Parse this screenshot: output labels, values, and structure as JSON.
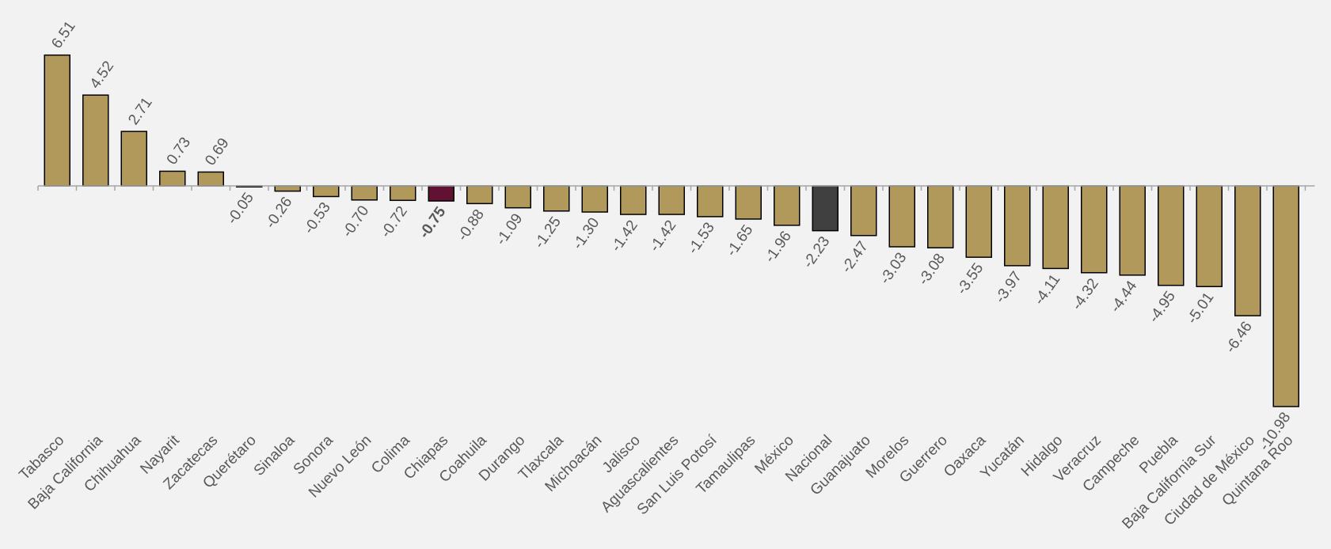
{
  "chart_data": {
    "type": "bar",
    "title": "",
    "xlabel": "",
    "ylabel": "",
    "ylim": [
      -11.5,
      7
    ],
    "grid": false,
    "legend": "none",
    "categories": [
      "Tabasco",
      "Baja California",
      "Chihuahua",
      "Nayarit",
      "Zacatecas",
      "Querétaro",
      "Sinaloa",
      "Sonora",
      "Nuevo León",
      "Colima",
      "Chiapas",
      "Coahuila",
      "Durango",
      "Tlaxcala",
      "Michoacán",
      "Jalisco",
      "Aguascalientes",
      "San Luis Potosí",
      "Tamaulipas",
      "México",
      "Nacional",
      "Guanajuato",
      "Morelos",
      "Guerrero",
      "Oaxaca",
      "Yucatán",
      "Hidalgo",
      "Veracruz",
      "Campeche",
      "Puebla",
      "Baja California Sur",
      "Ciudad de México",
      "Quintana Roo"
    ],
    "values": [
      6.51,
      4.52,
      2.71,
      0.73,
      0.69,
      -0.05,
      -0.26,
      -0.53,
      -0.7,
      -0.72,
      -0.75,
      -0.88,
      -1.09,
      -1.25,
      -1.3,
      -1.42,
      -1.42,
      -1.53,
      -1.65,
      -1.96,
      -2.23,
      -2.47,
      -3.03,
      -3.08,
      -3.55,
      -3.97,
      -4.11,
      -4.32,
      -4.44,
      -4.95,
      -5.01,
      -6.46,
      -10.98
    ],
    "value_labels": [
      "6.51",
      "4.52",
      "2.71",
      "0.73",
      "0.69",
      "-0.05",
      "-0.26",
      "-0.53",
      "-0.70",
      "-0.72",
      "-0.75",
      "-0.88",
      "-1.09",
      "-1.25",
      "-1.30",
      "-1.42",
      "-1.42",
      "-1.53",
      "-1.65",
      "-1.96",
      "-2.23",
      "-2.47",
      "-3.03",
      "-3.08",
      "-3.55",
      "-3.97",
      "-4.11",
      "-4.32",
      "-4.44",
      "-4.95",
      "-5.01",
      "-6.46",
      "-10.98"
    ],
    "highlights": {
      "Chiapas": {
        "color": "#611232",
        "bold_label": true
      },
      "Nacional": {
        "color": "#404041",
        "bold_label": false
      }
    },
    "colors": {
      "bar": "#b1995b",
      "bar_stroke": "#000000",
      "axis": "#a6a6a6",
      "label": "#595959",
      "background": "#f2f2f2"
    }
  }
}
